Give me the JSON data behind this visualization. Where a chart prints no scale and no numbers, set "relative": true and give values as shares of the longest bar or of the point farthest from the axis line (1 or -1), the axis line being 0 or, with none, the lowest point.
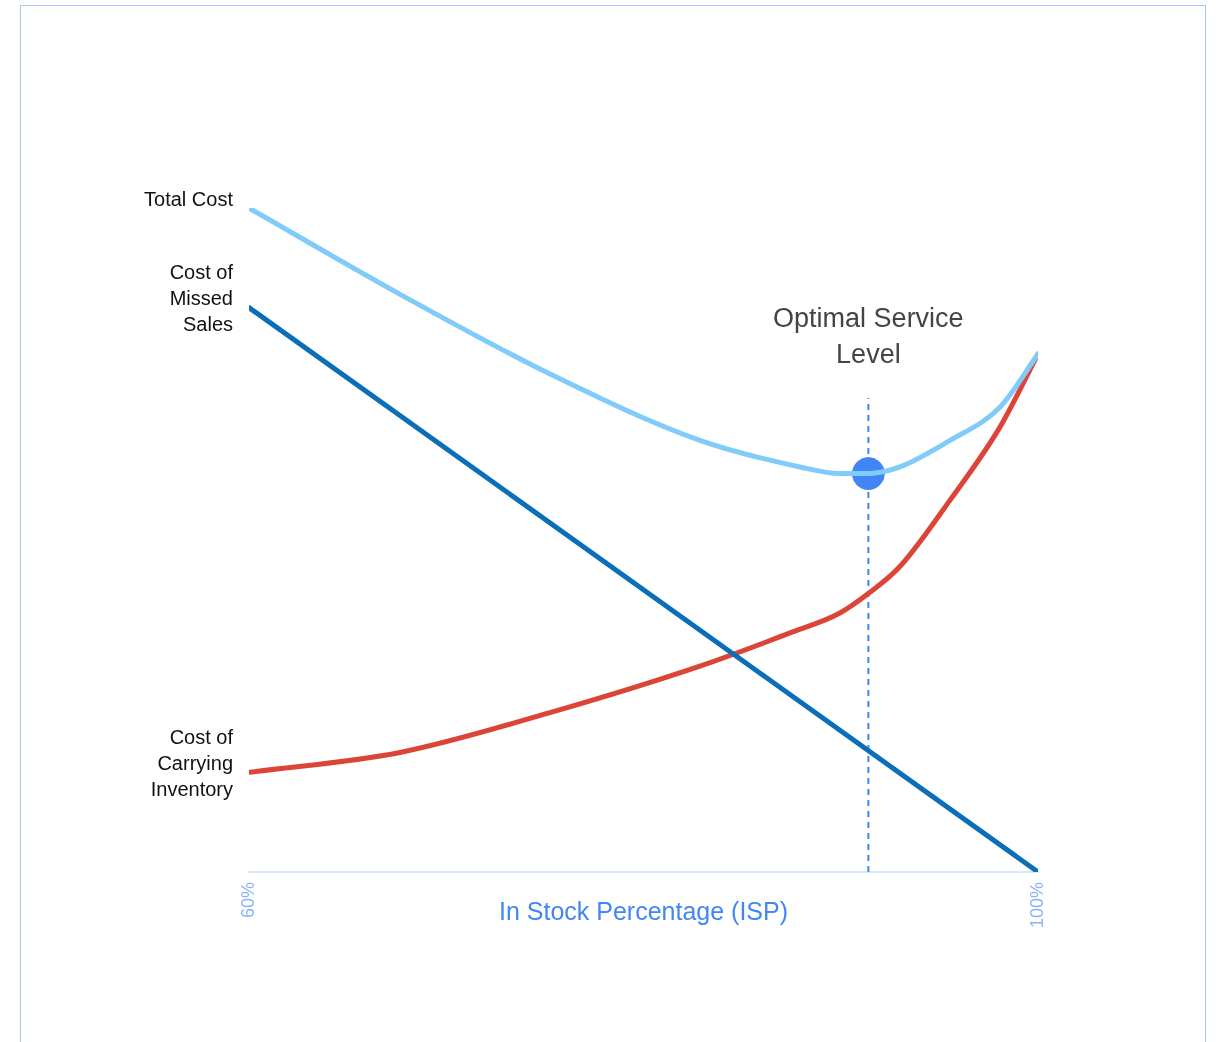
{
  "chart_data": {
    "type": "line",
    "relative": true,
    "xlabel": "In Stock Percentage (ISP)",
    "xlim": [
      60,
      100
    ],
    "xticks": [
      {
        "value": 60,
        "label": "60%"
      },
      {
        "value": 100,
        "label": "100%"
      }
    ],
    "tick_labels": "x",
    "grid": false,
    "legend": false,
    "series": [
      {
        "name": "Total Cost",
        "color": "#80cbfa",
        "x": [
          60,
          67.66,
          75.26,
          82.86,
          87.93,
          89.96,
          91.43,
          93.0,
          95.54,
          98.07,
          100
        ],
        "values": [
          1.0,
          0.87,
          0.75,
          0.65,
          0.61,
          0.6,
          0.6,
          0.61,
          0.65,
          0.7,
          0.78
        ]
      },
      {
        "name": "Cost of Missed Sales",
        "color": "#0a6fb8",
        "x": [
          60,
          100
        ],
        "values": [
          0.85,
          0
        ]
      },
      {
        "name": "Cost of Carrying Inventory",
        "color": "#db4437",
        "x": [
          60,
          67.66,
          75.26,
          82.86,
          87.43,
          89.96,
          91.43,
          93.0,
          95.54,
          98.07,
          100
        ],
        "values": [
          0.15,
          0.18,
          0.24,
          0.31,
          0.36,
          0.39,
          0.42,
          0.46,
          0.56,
          0.67,
          0.78
        ]
      },
      {
        "type": "scatter",
        "marker": "circle",
        "color": "#4285f4",
        "x": [
          91.4
        ],
        "values": [
          0.6
        ]
      }
    ],
    "ref_lines": [
      {
        "axis": "x",
        "value": 91.4,
        "label": "Optimal Service Level",
        "color": "#4285f4",
        "line_style": "dashed"
      }
    ]
  }
}
